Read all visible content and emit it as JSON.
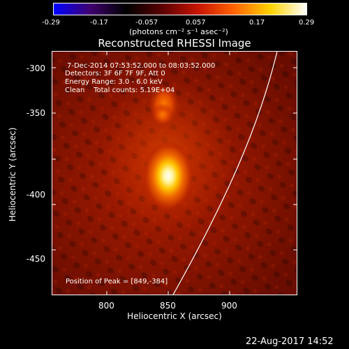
{
  "colorbar": {
    "tick_labels": [
      "-0.29",
      "-0.17",
      "-0.057",
      "0.057",
      "0.17",
      "0.29"
    ],
    "units": "(photons cm⁻² s⁻¹ asec⁻²)",
    "colors": [
      "#0000ff",
      "#400070",
      "#000000",
      "#5a0000",
      "#c81400",
      "#ff6400",
      "#ffd200",
      "#ffffff"
    ]
  },
  "plot": {
    "title": "Reconstructed RHESSI Image",
    "info_lines": [
      "7-Dec-2014 07:53:52.000 to 08:03:52.000",
      "Detectors: 3F 6F 7F 9F, Att 0",
      "Energy Range: 3.0 - 6.0 keV",
      "Clean    Total counts: 5.19E+04"
    ],
    "peak_text": "Position of Peak = [849,-384]",
    "xlabel": "Heliocentric X (arcsec)",
    "ylabel": "Heliocentric Y (arcsec)",
    "x_ticks": [
      "800",
      "850",
      "900"
    ],
    "y_ticks": [
      "-300",
      "-350",
      "-400",
      "-450"
    ]
  },
  "footer": {
    "timestamp": "22-Aug-2017 14:52"
  }
}
